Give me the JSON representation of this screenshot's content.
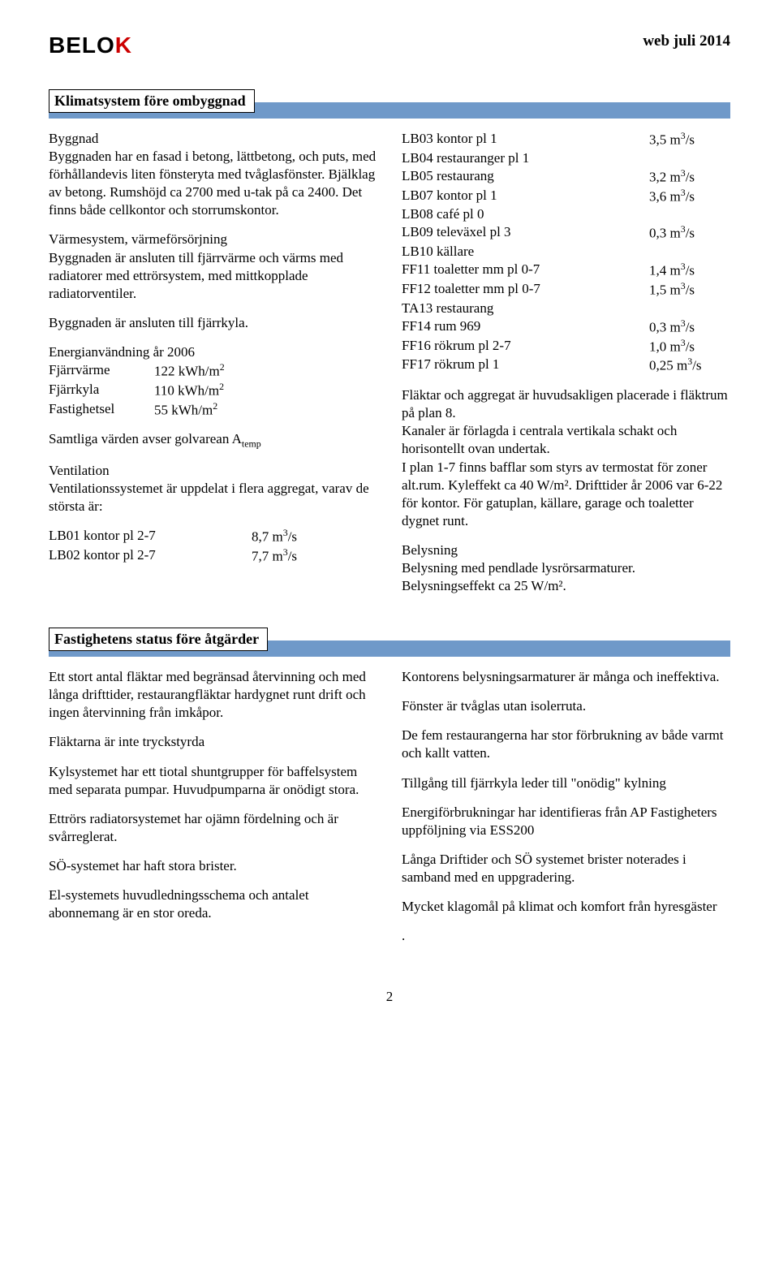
{
  "header": {
    "logo_main": "BELO",
    "logo_accent": "K",
    "right_text": "web juli 2014"
  },
  "section1": {
    "title": "Klimatsystem före ombyggnad",
    "left": {
      "byggnad_head": "Byggnad",
      "byggnad_body": "Byggnaden har en fasad i betong, lättbetong, och puts, med förhållandevis liten fönsteryta med tvåglasfönster. Bjälklag av betong. Rumshöjd ca 2700 med u-tak på ca 2400. Det finns både cellkontor och storrumskontor.",
      "varme_head": "Värmesystem, värmeförsörjning",
      "varme_body": "Byggnaden är ansluten till fjärrvärme och värms med radiatorer med ettrörsystem, med mittkopplade radiatorventiler.",
      "fjarrkyla": "Byggnaden är ansluten till fjärrkyla.",
      "energi_head": "Energianvändning år 2006",
      "energi_rows": [
        {
          "label": "Fjärrvärme",
          "value": "122 kWh/m²"
        },
        {
          "label": "Fjärrkyla",
          "value": "110 kWh/m²"
        },
        {
          "label": "Fastighetsel",
          "value": "55 kWh/m²"
        }
      ],
      "samtliga_pre": "Samtliga värden avser golvarean A",
      "samtliga_sub": "temp",
      "vent_head": "Ventilation",
      "vent_body": "Ventilationssystemet är uppdelat i flera aggregat, varav de största är:",
      "vent_rows": [
        {
          "label": "LB01 kontor pl 2-7",
          "value": "8,7 m³/s"
        },
        {
          "label": "LB02 kontor pl 2-7",
          "value": "7,7 m³/s"
        }
      ]
    },
    "right": {
      "vent_rows": [
        {
          "label": "LB03 kontor pl 1",
          "value": "3,5 m³/s"
        },
        {
          "label": "LB04 restauranger pl 1",
          "value": ""
        },
        {
          "label": "LB05 restaurang",
          "value": "3,2 m³/s"
        },
        {
          "label": "LB07 kontor pl 1",
          "value": "3,6 m³/s"
        },
        {
          "label": "LB08 café pl 0",
          "value": ""
        },
        {
          "label": "LB09 televäxel pl 3",
          "value": "0,3 m³/s"
        },
        {
          "label": "LB10 källare",
          "value": ""
        },
        {
          "label": "FF11 toaletter mm pl 0-7",
          "value": "1,4 m³/s"
        },
        {
          "label": "FF12 toaletter mm pl 0-7",
          "value": "1,5 m³/s"
        },
        {
          "label": "TA13 restaurang",
          "value": ""
        },
        {
          "label": "FF14 rum 969",
          "value": "0,3 m³/s"
        },
        {
          "label": "FF16 rökrum pl 2-7",
          "value": "1,0 m³/s"
        },
        {
          "label": "FF17 rökrum pl 1",
          "value": "0,25 m³/s"
        }
      ],
      "flakt_para": "Fläktar och aggregat är huvudsakligen placerade i fläktrum på plan 8.",
      "kanal_para": "Kanaler är förlagda i centrala vertikala schakt och horisontellt ovan undertak.",
      "plan_para": "I plan 1-7 finns bafflar som styrs av termostat för zoner alt.rum. Kyleffekt ca 40 W/m². Drifttider år 2006 var 6-22 för kontor. För gatuplan, källare, garage och toaletter dygnet runt.",
      "belys_head": "Belysning",
      "belys_body": "Belysning med pendlade lysrörsarmaturer. Belysningseffekt ca 25 W/m²."
    }
  },
  "section2": {
    "title": "Fastighetens status före åtgärder",
    "left_paras": [
      "Ett stort antal fläktar med begränsad återvinning och med långa drifttider, restaurangfläktar hardygnet runt drift och ingen återvinning från imkåpor.",
      "Fläktarna är inte tryckstyrda",
      "Kylsystemet har ett tiotal shuntgrupper för baffelsystem med separata pumpar. Huvudpumparna är onödigt stora.",
      "Ettrörs radiatorsystemet har ojämn fördelning och är svårreglerat.",
      "SÖ-systemet har haft stora brister.",
      "El-systemets huvudledningsschema och antalet abonnemang är en stor oreda."
    ],
    "right_paras": [
      "Kontorens belysningsarmaturer är många och ineffektiva.",
      "Fönster är tvåglas utan isolerruta.",
      "De fem restaurangerna har stor förbrukning av både varmt och kallt vatten.",
      "Tillgång till fjärrkyla leder till \"onödig\" kylning",
      "Energiförbrukningar har identifieras från AP Fastigheters uppföljning via ESS200",
      "Långa Driftider och SÖ systemet brister noterades i samband med en uppgradering.",
      "Mycket klagomål på klimat och komfort från hyresgäster",
      "."
    ]
  },
  "page_number": "2",
  "colors": {
    "bar": "#6f99c9",
    "logo_accent": "#c00"
  }
}
